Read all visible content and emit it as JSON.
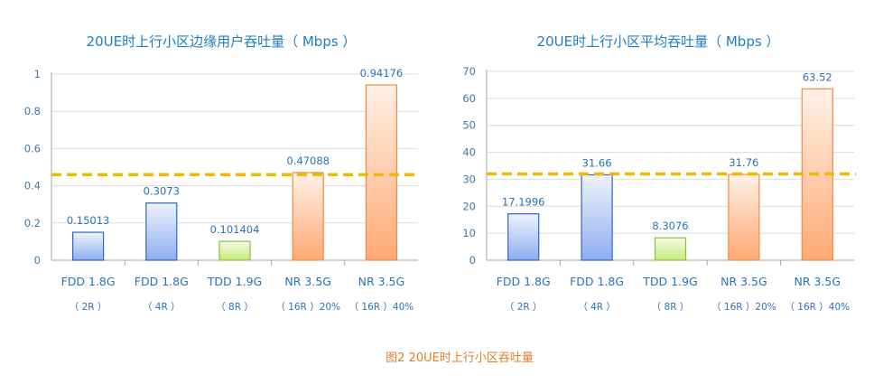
{
  "caption": "图2  20UE时上行小区吞吐量",
  "colors": {
    "text": "#2a72b8",
    "ref_line": "#f0b800",
    "axis": "#a6a6a6"
  },
  "chart_data": [
    {
      "type": "bar",
      "title": "20UE时上行小区边缘用户吞吐量（ Mbps ）",
      "categories": [
        "FDD 1.8G",
        "FDD 1.8G",
        "TDD 1.9G",
        "NR 3.5G",
        "NR 3.5G"
      ],
      "category_sub": [
        "（ 2R ）",
        "（ 4R ）",
        "（ 8R ）",
        "（ 16R ）20%",
        "（ 16R ）40%"
      ],
      "values": [
        0.15013,
        0.3073,
        0.101404,
        0.47088,
        0.94176
      ],
      "value_labels": [
        "0.15013",
        "0.3073",
        "0.101404",
        "0.47088",
        "0.94176"
      ],
      "bar_styles": [
        "blue",
        "blue",
        "green",
        "orange",
        "orange"
      ],
      "ylim": [
        0,
        1
      ],
      "yticks": [
        0,
        0.2,
        0.4,
        0.6,
        0.8,
        1
      ],
      "ytick_labels": [
        "0",
        "0.2",
        "0.4",
        "0.6",
        "0.8",
        "1"
      ],
      "reference_line": 0.46,
      "grid": true
    },
    {
      "type": "bar",
      "title": "20UE时上行小区平均吞吐量（ Mbps ）",
      "categories": [
        "FDD 1.8G",
        "FDD 1.8G",
        "TDD 1.9G",
        "NR 3.5G",
        "NR 3.5G"
      ],
      "category_sub": [
        "（ 2R ）",
        "（ 4R ）",
        "（ 8R ）",
        "（ 16R ）20%",
        "（ 16R ）40%"
      ],
      "values": [
        17.1996,
        31.66,
        8.3076,
        31.76,
        63.52
      ],
      "value_labels": [
        "17.1996",
        "31.66",
        "8.3076",
        "31.76",
        "63.52"
      ],
      "bar_styles": [
        "blue",
        "blue",
        "green",
        "orange",
        "orange"
      ],
      "ylim": [
        0,
        70
      ],
      "yticks": [
        0,
        10,
        20,
        30,
        40,
        50,
        60,
        70
      ],
      "ytick_labels": [
        "0",
        "10",
        "20",
        "30",
        "40",
        "50",
        "60",
        "70"
      ],
      "reference_line": 32,
      "grid": true
    }
  ]
}
